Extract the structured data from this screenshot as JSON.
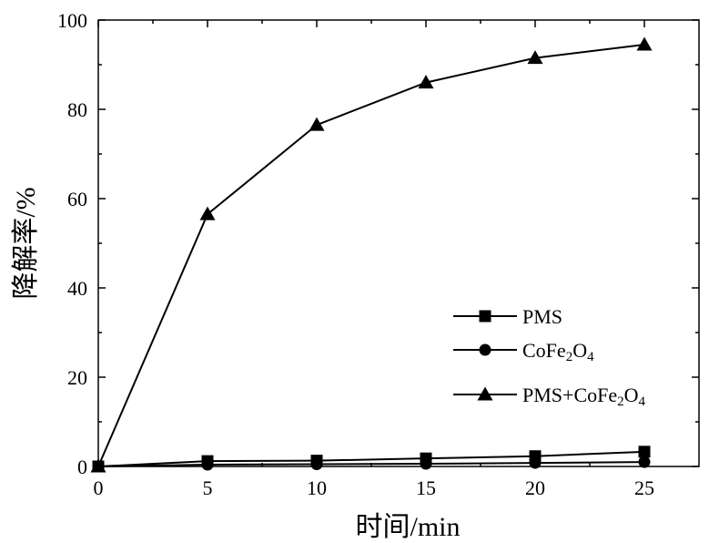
{
  "chart_data": {
    "type": "line",
    "xlabel": "时间/min",
    "ylabel": "降解率/%",
    "xlim": [
      0,
      27.5
    ],
    "ylim": [
      0,
      100
    ],
    "xticks": [
      0,
      5,
      10,
      15,
      20,
      25
    ],
    "yticks": [
      0,
      20,
      40,
      60,
      80,
      100
    ],
    "x": [
      0,
      5,
      10,
      15,
      20,
      25
    ],
    "series": [
      {
        "name": "PMS",
        "marker": "square",
        "values": [
          0,
          1.2,
          1.3,
          1.8,
          2.3,
          3.3
        ]
      },
      {
        "name": "CoFe2O4",
        "name_parts": [
          "CoFe",
          "2",
          "O",
          "4"
        ],
        "marker": "circle",
        "values": [
          0,
          0.4,
          0.5,
          0.6,
          0.8,
          1.0
        ]
      },
      {
        "name": "PMS+CoFe2O4",
        "name_parts": [
          "PMS+CoFe",
          "2",
          "O",
          "4"
        ],
        "marker": "triangle",
        "values": [
          0,
          56.5,
          76.5,
          86,
          91.5,
          94.5
        ]
      }
    ],
    "legend_position": "lower-right",
    "grid": false,
    "color": "#000000"
  }
}
